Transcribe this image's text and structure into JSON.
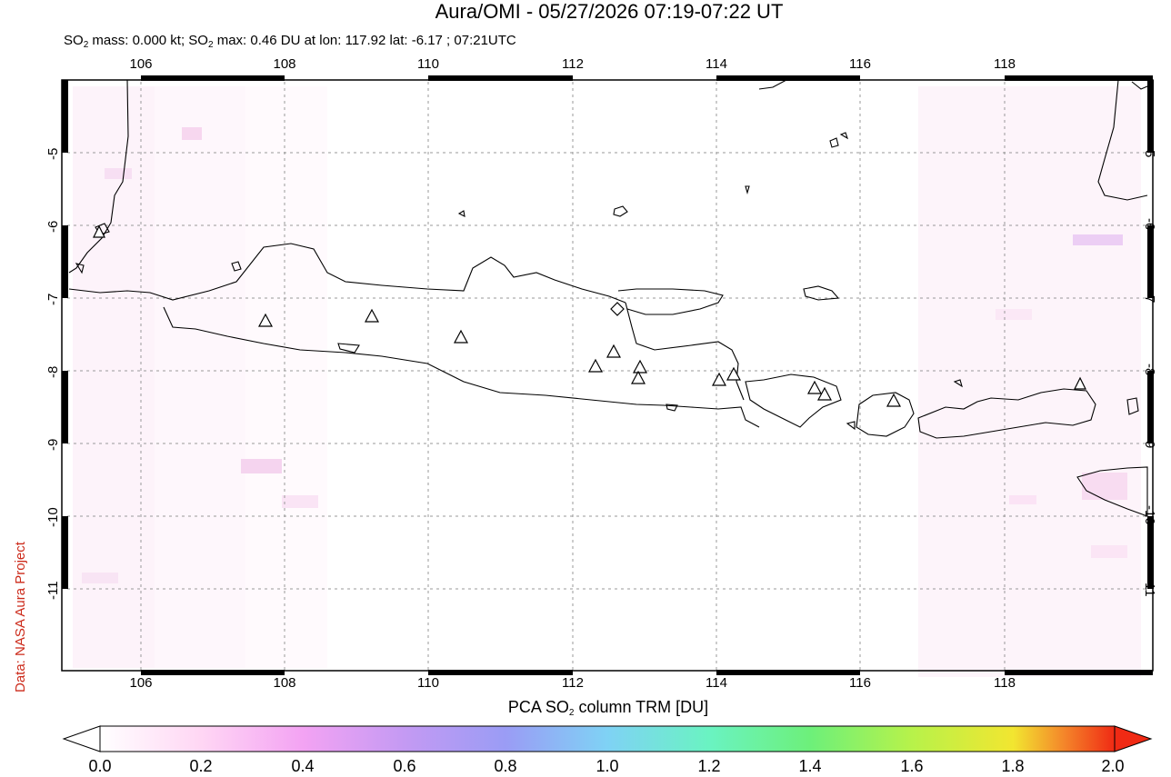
{
  "header": {
    "title": "Aura/OMI - 05/27/2026 07:19-07:22 UT",
    "subtitle_prefix": "SO",
    "subtitle_sub": "2",
    "subtitle_mid": " mass: 0.000 kt; SO",
    "subtitle_sub2": "2",
    "subtitle_rest": " max: 0.46 DU at lon: 117.92 lat: -6.17 ; 07:21UTC"
  },
  "credit": "Data: NASA Aura Project",
  "map": {
    "lon_ticks": [
      "106",
      "108",
      "110",
      "112",
      "114",
      "116",
      "118"
    ],
    "lat_ticks": [
      "-5",
      "-6",
      "-7",
      "-8",
      "-9",
      "-10",
      "-11"
    ],
    "volcano_marker": "triangle-icon",
    "max_marker": "diamond-icon"
  },
  "colorbar": {
    "title_prefix": "PCA SO",
    "title_sub": "2",
    "title_rest": " column TRM [DU]",
    "ticks": [
      "0.0",
      "0.2",
      "0.4",
      "0.6",
      "0.8",
      "1.0",
      "1.2",
      "1.4",
      "1.6",
      "1.8",
      "2.0"
    ],
    "colors": [
      "#ffffff",
      "#ffd6f4",
      "#f3a3f3",
      "#c49af3",
      "#9a9cf5",
      "#7fd2f5",
      "#6af3c2",
      "#6df07a",
      "#b7f24a",
      "#f2e630",
      "#f4862a",
      "#f02a14"
    ]
  }
}
